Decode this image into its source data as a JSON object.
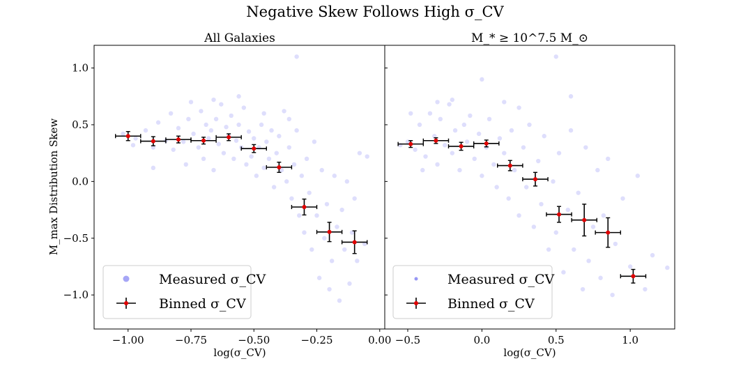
{
  "figure": {
    "title": "Negative Skew Follows High σ_CV"
  },
  "chart_data": [
    {
      "type": "scatter",
      "panel_title": "All Galaxies",
      "xlabel": "log(σ_CV)",
      "ylabel": "M_max Distribution Skew",
      "xlim": [
        -1.135,
        0.02
      ],
      "ylim": [
        -1.3,
        1.2
      ],
      "xticks": [
        -1.0,
        -0.75,
        -0.5,
        -0.25,
        0.0
      ],
      "xtick_labels": [
        "−1.00",
        "−0.75",
        "−0.50",
        "−0.25",
        "0.00"
      ],
      "yticks": [
        1.0,
        0.5,
        0.0,
        -0.5,
        -1.0
      ],
      "ytick_labels": [
        "1.0",
        "0.5",
        "0.0",
        "−0.5",
        "−1.0"
      ],
      "legend": {
        "placement": "lower-left",
        "entries": [
          {
            "label": "Measured σ_CV",
            "marker": "dot"
          },
          {
            "label": "Binned σ_CV",
            "marker": "errorbar"
          }
        ]
      },
      "series": [
        {
          "name": "Measured σ_CV",
          "color": "#6b6bf0",
          "scatter_points": [
            [
              -1.02,
              0.42
            ],
            [
              -0.97,
              0.38
            ],
            [
              -0.93,
              0.45
            ],
            [
              -0.9,
              0.3
            ],
            [
              -0.88,
              0.52
            ],
            [
              -0.85,
              0.36
            ],
            [
              -0.83,
              0.6
            ],
            [
              -0.82,
              0.28
            ],
            [
              -0.8,
              0.47
            ],
            [
              -0.78,
              0.35
            ],
            [
              -0.77,
              0.15
            ],
            [
              -0.76,
              0.55
            ],
            [
              -0.74,
              0.42
            ],
            [
              -0.72,
              0.3
            ],
            [
              -0.71,
              0.62
            ],
            [
              -0.7,
              0.2
            ],
            [
              -0.69,
              0.5
            ],
            [
              -0.68,
              0.38
            ],
            [
              -0.67,
              0.45
            ],
            [
              -0.66,
              0.1
            ],
            [
              -0.65,
              0.55
            ],
            [
              -0.64,
              0.33
            ],
            [
              -0.63,
              0.68
            ],
            [
              -0.62,
              0.25
            ],
            [
              -0.61,
              0.48
            ],
            [
              -0.6,
              0.4
            ],
            [
              -0.59,
              0.58
            ],
            [
              -0.58,
              0.2
            ],
            [
              -0.57,
              0.36
            ],
            [
              -0.56,
              0.5
            ],
            [
              -0.55,
              0.3
            ],
            [
              -0.54,
              0.65
            ],
            [
              -0.53,
              0.15
            ],
            [
              -0.52,
              0.44
            ],
            [
              -0.51,
              0.22
            ],
            [
              -0.5,
              0.38
            ],
            [
              -0.49,
              0.05
            ],
            [
              -0.48,
              0.3
            ],
            [
              -0.47,
              0.5
            ],
            [
              -0.46,
              0.12
            ],
            [
              -0.45,
              0.35
            ],
            [
              -0.44,
              0.2
            ],
            [
              -0.43,
              0.45
            ],
            [
              -0.42,
              -0.05
            ],
            [
              -0.41,
              0.25
            ],
            [
              -0.4,
              0.4
            ],
            [
              -0.39,
              0.1
            ],
            [
              -0.38,
              0.62
            ],
            [
              -0.37,
              0.0
            ],
            [
              -0.36,
              0.3
            ],
            [
              -0.35,
              -0.15
            ],
            [
              -0.34,
              0.15
            ],
            [
              -0.33,
              0.45
            ],
            [
              -0.32,
              -0.3
            ],
            [
              -0.31,
              0.05
            ],
            [
              -0.3,
              -0.45
            ],
            [
              -0.29,
              0.2
            ],
            [
              -0.28,
              -0.1
            ],
            [
              -0.27,
              -0.6
            ],
            [
              -0.26,
              0.35
            ],
            [
              -0.25,
              -0.3
            ],
            [
              -0.24,
              -0.85
            ],
            [
              -0.23,
              0.1
            ],
            [
              -0.22,
              -0.5
            ],
            [
              -0.21,
              -0.2
            ],
            [
              -0.2,
              -0.95
            ],
            [
              -0.19,
              -0.7
            ],
            [
              -0.18,
              0.05
            ],
            [
              -0.17,
              -0.4
            ],
            [
              -0.16,
              -1.05
            ],
            [
              -0.15,
              -0.25
            ],
            [
              -0.14,
              -0.6
            ],
            [
              -0.13,
              0.0
            ],
            [
              -0.12,
              -0.9
            ],
            [
              -0.11,
              -0.45
            ],
            [
              -0.1,
              -0.15
            ],
            [
              -0.09,
              -0.7
            ],
            [
              -0.08,
              0.25
            ],
            [
              -0.06,
              -0.55
            ],
            [
              -0.05,
              0.22
            ],
            [
              -0.33,
              1.1
            ],
            [
              -0.98,
              0.32
            ],
            [
              -0.9,
              0.12
            ],
            [
              -0.75,
              0.7
            ],
            [
              -0.66,
              0.72
            ],
            [
              -0.56,
              0.75
            ],
            [
              -0.46,
              0.6
            ],
            [
              -0.36,
              0.55
            ]
          ]
        },
        {
          "name": "Binned σ_CV",
          "color": "#e00000",
          "x": [
            -1.0,
            -0.9,
            -0.8,
            -0.7,
            -0.6,
            -0.5,
            -0.4,
            -0.3,
            -0.2,
            -0.1
          ],
          "y": [
            0.4,
            0.355,
            0.37,
            0.36,
            0.39,
            0.29,
            0.125,
            -0.225,
            -0.445,
            -0.535
          ],
          "x_err": [
            0.05,
            0.05,
            0.05,
            0.05,
            0.05,
            0.05,
            0.05,
            0.05,
            0.05,
            0.05
          ],
          "y_err": [
            0.04,
            0.04,
            0.03,
            0.03,
            0.03,
            0.035,
            0.045,
            0.07,
            0.085,
            0.1
          ]
        }
      ]
    },
    {
      "type": "scatter",
      "panel_title": "M_* ≥ 10^7.5 M_⊙",
      "xlabel": "log(σ_CV)",
      "xlim": [
        -0.655,
        1.3
      ],
      "ylim": [
        -1.3,
        1.2
      ],
      "xticks": [
        -0.5,
        0.0,
        0.5,
        1.0
      ],
      "xtick_labels": [
        "−0.5",
        "0.0",
        "0.5",
        "1.0"
      ],
      "legend": {
        "placement": "lower-left",
        "entries": [
          {
            "label": "Measured σ_CV",
            "marker": "dot"
          },
          {
            "label": "Binned σ_CV",
            "marker": "errorbar"
          }
        ]
      },
      "series": [
        {
          "name": "Measured σ_CV",
          "color": "#6b6bf0",
          "scatter_points": [
            [
              -0.5,
              0.35
            ],
            [
              -0.45,
              0.28
            ],
            [
              -0.42,
              0.5
            ],
            [
              -0.38,
              0.22
            ],
            [
              -0.35,
              0.6
            ],
            [
              -0.32,
              0.4
            ],
            [
              -0.3,
              0.15
            ],
            [
              -0.28,
              0.55
            ],
            [
              -0.25,
              0.32
            ],
            [
              -0.22,
              0.68
            ],
            [
              -0.2,
              0.25
            ],
            [
              -0.18,
              0.45
            ],
            [
              -0.15,
              0.1
            ],
            [
              -0.12,
              0.5
            ],
            [
              -0.1,
              0.35
            ],
            [
              -0.08,
              0.58
            ],
            [
              -0.05,
              0.2
            ],
            [
              -0.02,
              0.42
            ],
            [
              0.0,
              0.05
            ],
            [
              0.03,
              0.3
            ],
            [
              0.05,
              0.55
            ],
            [
              0.08,
              0.15
            ],
            [
              0.1,
              -0.05
            ],
            [
              0.12,
              0.38
            ],
            [
              0.15,
              0.25
            ],
            [
              0.18,
              -0.15
            ],
            [
              0.2,
              0.45
            ],
            [
              0.22,
              0.1
            ],
            [
              0.25,
              -0.3
            ],
            [
              0.28,
              0.3
            ],
            [
              0.3,
              -0.05
            ],
            [
              0.32,
              0.5
            ],
            [
              0.35,
              -0.4
            ],
            [
              0.38,
              0.18
            ],
            [
              0.4,
              -0.2
            ],
            [
              0.42,
              0.4
            ],
            [
              0.45,
              -0.6
            ],
            [
              0.48,
              0.0
            ],
            [
              0.5,
              -0.45
            ],
            [
              0.52,
              0.25
            ],
            [
              0.55,
              -0.8
            ],
            [
              0.58,
              -0.25
            ],
            [
              0.6,
              0.45
            ],
            [
              0.62,
              -0.6
            ],
            [
              0.65,
              -0.1
            ],
            [
              0.68,
              -0.95
            ],
            [
              0.7,
              0.3
            ],
            [
              0.72,
              -0.7
            ],
            [
              0.75,
              -0.4
            ],
            [
              0.78,
              0.1
            ],
            [
              0.8,
              -0.85
            ],
            [
              0.82,
              -0.3
            ],
            [
              0.85,
              0.2
            ],
            [
              0.88,
              -1.0
            ],
            [
              0.9,
              -0.55
            ],
            [
              0.95,
              -0.15
            ],
            [
              1.0,
              -0.75
            ],
            [
              1.05,
              0.05
            ],
            [
              1.1,
              -0.95
            ],
            [
              1.15,
              -0.65
            ],
            [
              1.25,
              -0.76
            ],
            [
              0.5,
              1.1
            ],
            [
              -0.3,
              0.7
            ],
            [
              0.0,
              0.9
            ],
            [
              -0.55,
              0.32
            ],
            [
              -0.48,
              0.6
            ],
            [
              -0.4,
              0.1
            ],
            [
              -0.2,
              0.72
            ],
            [
              0.15,
              0.7
            ],
            [
              0.25,
              0.65
            ],
            [
              0.4,
              -0.85
            ],
            [
              0.6,
              0.75
            ]
          ]
        },
        {
          "name": "Binned σ_CV",
          "color": "#e00000",
          "x": [
            -0.48,
            -0.31,
            -0.14,
            0.03,
            0.19,
            0.36,
            0.52,
            0.69,
            0.85,
            1.02
          ],
          "y": [
            0.33,
            0.36,
            0.31,
            0.335,
            0.14,
            0.02,
            -0.29,
            -0.34,
            -0.45,
            -0.835
          ],
          "x_err": [
            0.085,
            0.085,
            0.085,
            0.085,
            0.085,
            0.085,
            0.085,
            0.085,
            0.085,
            0.085
          ],
          "y_err": [
            0.03,
            0.025,
            0.035,
            0.03,
            0.045,
            0.06,
            0.07,
            0.14,
            0.13,
            0.06
          ]
        }
      ]
    }
  ]
}
